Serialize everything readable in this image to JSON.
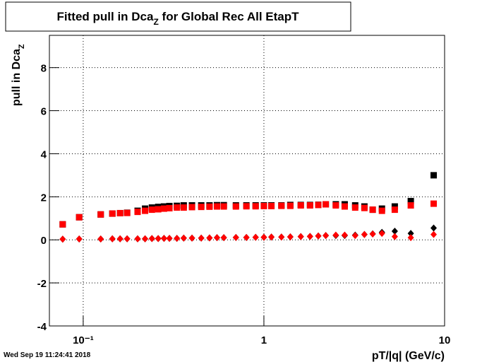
{
  "chart_data": {
    "type": "scatter",
    "title": [
      "Fitted pull in Dca",
      "Z",
      " for Global Rec All EtapT"
    ],
    "y_label": [
      "pull in Dca",
      "Z"
    ],
    "x_label": "pT/|q| (GeV/c)",
    "timestamp": "Wed Sep 19 11:24:41 2018",
    "log_x": true,
    "grid": true,
    "xlim": [
      0.065,
      10
    ],
    "ylim": [
      -4,
      9.5
    ],
    "xticks": [
      {
        "value": 0.1,
        "label": "10⁻¹"
      },
      1,
      10
    ],
    "yticks": [
      -4,
      -2,
      0,
      2,
      4,
      6,
      8
    ],
    "x": [
      0.077,
      0.095,
      0.125,
      0.145,
      0.16,
      0.175,
      0.2,
      0.22,
      0.24,
      0.26,
      0.28,
      0.3,
      0.33,
      0.36,
      0.4,
      0.45,
      0.5,
      0.55,
      0.6,
      0.7,
      0.8,
      0.9,
      1.0,
      1.1,
      1.25,
      1.4,
      1.6,
      1.8,
      2.0,
      2.2,
      2.5,
      2.8,
      3.2,
      3.6,
      4.0,
      4.5,
      5.3,
      6.5,
      8.7
    ],
    "series": [
      {
        "color": "#000000",
        "marker": "square",
        "values": [
          0.72,
          1.05,
          1.18,
          1.22,
          1.24,
          1.26,
          1.35,
          1.45,
          1.5,
          1.53,
          1.55,
          1.57,
          1.58,
          1.6,
          1.6,
          1.6,
          1.6,
          1.61,
          1.61,
          1.6,
          1.6,
          1.6,
          1.6,
          1.6,
          1.6,
          1.62,
          1.62,
          1.62,
          1.63,
          1.65,
          1.65,
          1.65,
          1.6,
          1.55,
          1.4,
          1.45,
          1.55,
          1.8,
          3.0
        ]
      },
      {
        "color": "#000000",
        "marker": "diamond",
        "values": [
          0.03,
          0.04,
          0.04,
          0.05,
          0.05,
          0.05,
          0.05,
          0.05,
          0.06,
          0.06,
          0.07,
          0.07,
          0.07,
          0.08,
          0.08,
          0.08,
          0.09,
          0.1,
          0.1,
          0.11,
          0.11,
          0.12,
          0.12,
          0.13,
          0.13,
          0.14,
          0.15,
          0.16,
          0.18,
          0.2,
          0.2,
          0.2,
          0.22,
          0.25,
          0.28,
          0.35,
          0.4,
          0.3,
          0.55
        ]
      },
      {
        "color": "#ff0000",
        "marker": "square",
        "values": [
          0.72,
          1.05,
          1.18,
          1.22,
          1.24,
          1.25,
          1.3,
          1.35,
          1.4,
          1.42,
          1.45,
          1.47,
          1.5,
          1.5,
          1.52,
          1.53,
          1.54,
          1.55,
          1.55,
          1.55,
          1.56,
          1.56,
          1.57,
          1.57,
          1.58,
          1.58,
          1.6,
          1.6,
          1.62,
          1.65,
          1.6,
          1.55,
          1.5,
          1.48,
          1.4,
          1.35,
          1.4,
          1.6,
          1.68
        ]
      },
      {
        "color": "#ff0000",
        "marker": "diamond",
        "values": [
          0.03,
          0.04,
          0.04,
          0.05,
          0.05,
          0.05,
          0.05,
          0.05,
          0.06,
          0.06,
          0.07,
          0.07,
          0.07,
          0.08,
          0.08,
          0.08,
          0.09,
          0.1,
          0.1,
          0.11,
          0.11,
          0.12,
          0.12,
          0.13,
          0.13,
          0.14,
          0.15,
          0.16,
          0.18,
          0.2,
          0.22,
          0.22,
          0.2,
          0.25,
          0.27,
          0.3,
          0.15,
          0.1,
          0.25
        ]
      }
    ]
  }
}
